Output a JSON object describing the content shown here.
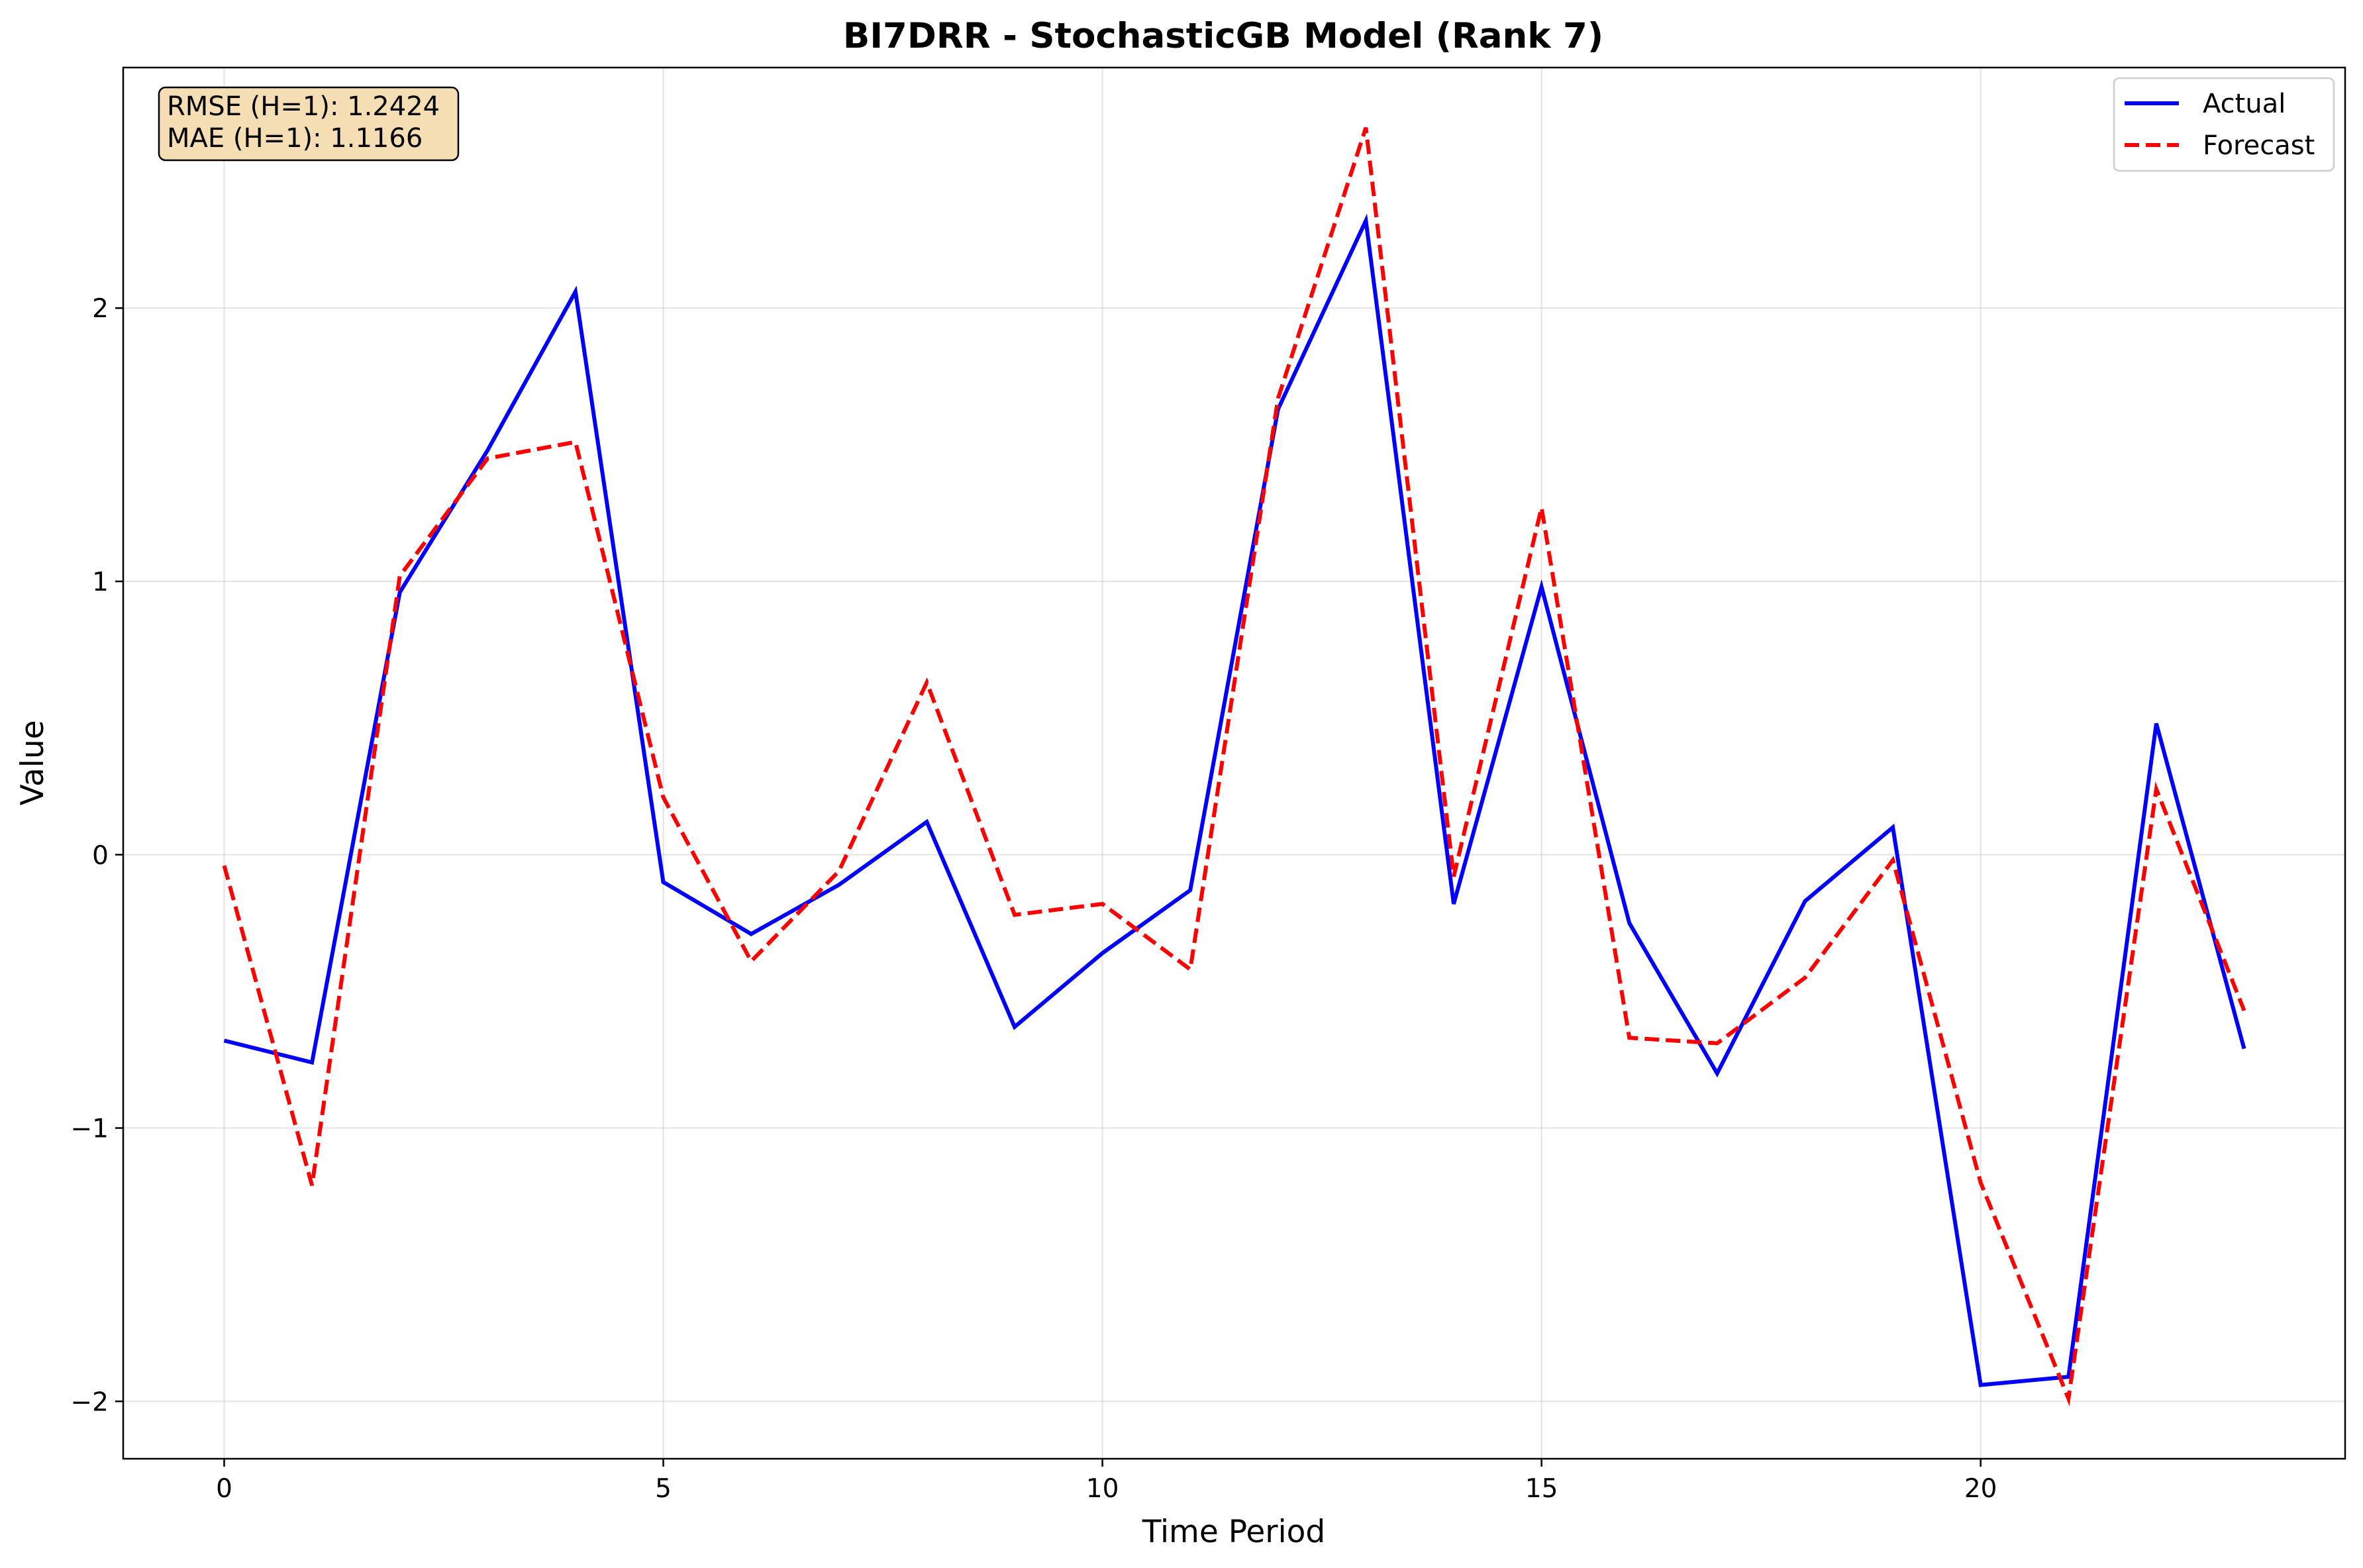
{
  "chart_data": {
    "type": "line",
    "title": "BI7DRR - StochasticGB Model (Rank 7)",
    "xlabel": "Time Period",
    "ylabel": "Value",
    "x": [
      0,
      1,
      2,
      3,
      4,
      5,
      6,
      7,
      8,
      9,
      10,
      11,
      12,
      13,
      14,
      15,
      16,
      17,
      18,
      19,
      20,
      21,
      22,
      23
    ],
    "xlim": [
      -1.15,
      24.15
    ],
    "ylim": [
      -2.21,
      2.88
    ],
    "xticks": [
      0,
      5,
      10,
      15,
      20
    ],
    "yticks": [
      -2,
      -1,
      0,
      1,
      2
    ],
    "xtick_labels": [
      "0",
      "5",
      "10",
      "15",
      "20"
    ],
    "ytick_labels": [
      "−2",
      "−1",
      "0",
      "1",
      "2"
    ],
    "grid": true,
    "legend_position": "top-right",
    "series": [
      {
        "name": "Actual",
        "color": "#0000ff",
        "style": "solid",
        "values": [
          -0.68,
          -0.76,
          0.96,
          1.48,
          2.06,
          -0.1,
          -0.29,
          -0.11,
          0.12,
          -0.63,
          -0.36,
          -0.13,
          1.63,
          2.32,
          -0.18,
          0.98,
          -0.25,
          -0.8,
          -0.17,
          0.1,
          -1.94,
          -1.91,
          0.48,
          -0.71
        ]
      },
      {
        "name": "Forecast",
        "color": "#ff0000",
        "style": "dashed",
        "values": [
          -0.04,
          -1.21,
          1.02,
          1.45,
          1.51,
          0.21,
          -0.39,
          -0.06,
          0.63,
          -0.22,
          -0.18,
          -0.42,
          1.67,
          2.66,
          -0.08,
          1.27,
          -0.67,
          -0.69,
          -0.45,
          -0.02,
          -1.2,
          -1.99,
          0.24,
          -0.57
        ]
      }
    ],
    "annotation": {
      "lines": [
        "RMSE (H=1): 1.2424",
        "MAE (H=1): 1.1166"
      ],
      "background": "#f5deb3"
    }
  }
}
